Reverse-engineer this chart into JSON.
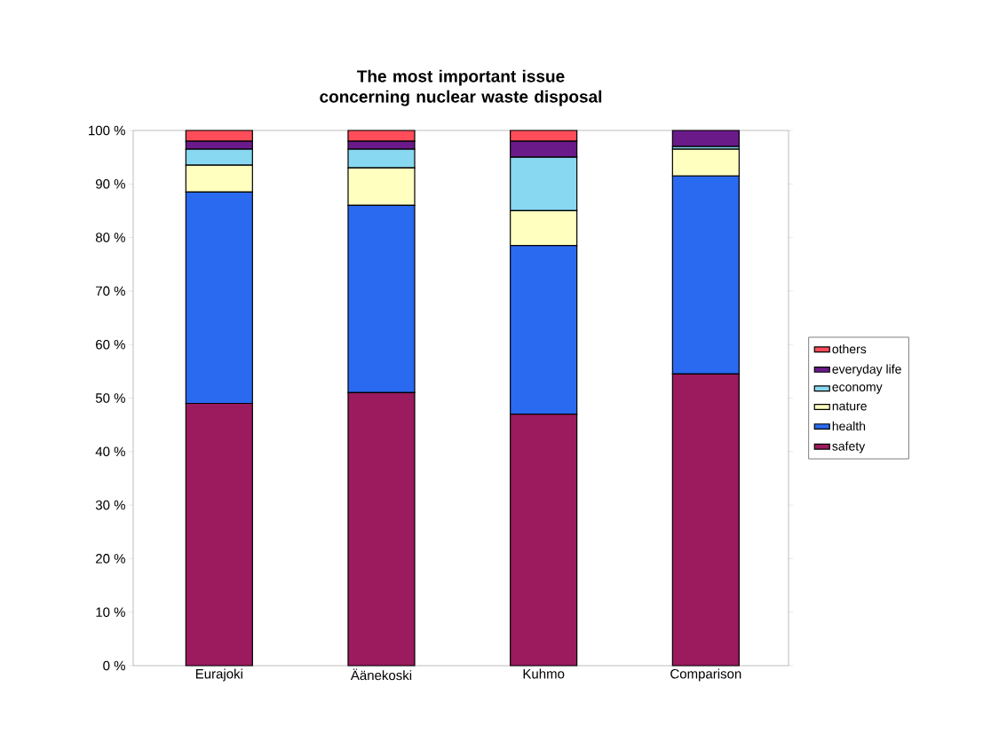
{
  "chart_data": {
    "type": "bar",
    "stacked": true,
    "title": "The most important issue concerning nuclear waste disposal",
    "categories": [
      "Eurajoki",
      "Äänekoski",
      "Kuhmo",
      "Comparison"
    ],
    "series": [
      {
        "name": "safety",
        "color": "#9c1a5e",
        "values": [
          49,
          51,
          47,
          54.5
        ]
      },
      {
        "name": "health",
        "color": "#2a6af0",
        "values": [
          39.5,
          35,
          31.5,
          37
        ]
      },
      {
        "name": "nature",
        "color": "#ffffc0",
        "values": [
          5,
          7,
          6.5,
          5
        ]
      },
      {
        "name": "economy",
        "color": "#87d8f0",
        "values": [
          3,
          3.5,
          10,
          0.5
        ]
      },
      {
        "name": "everyday life",
        "color": "#6b1a8a",
        "values": [
          1.5,
          1.5,
          3,
          3
        ]
      },
      {
        "name": "others",
        "color": "#ff4d5a",
        "values": [
          2,
          2,
          2,
          0
        ]
      }
    ],
    "ylim": [
      0,
      100
    ],
    "yticks": [
      {
        "value": 0,
        "label": "0 %"
      },
      {
        "value": 10,
        "label": "10 %"
      },
      {
        "value": 20,
        "label": "20 %"
      },
      {
        "value": 30,
        "label": "30 %"
      },
      {
        "value": 40,
        "label": "40 %"
      },
      {
        "value": 50,
        "label": "50 %"
      },
      {
        "value": 60,
        "label": "60 %"
      },
      {
        "value": 70,
        "label": "70 %"
      },
      {
        "value": 80,
        "label": "80 %"
      },
      {
        "value": 90,
        "label": "90 %"
      },
      {
        "value": 100,
        "label": "100 %"
      }
    ],
    "legend": "right"
  }
}
